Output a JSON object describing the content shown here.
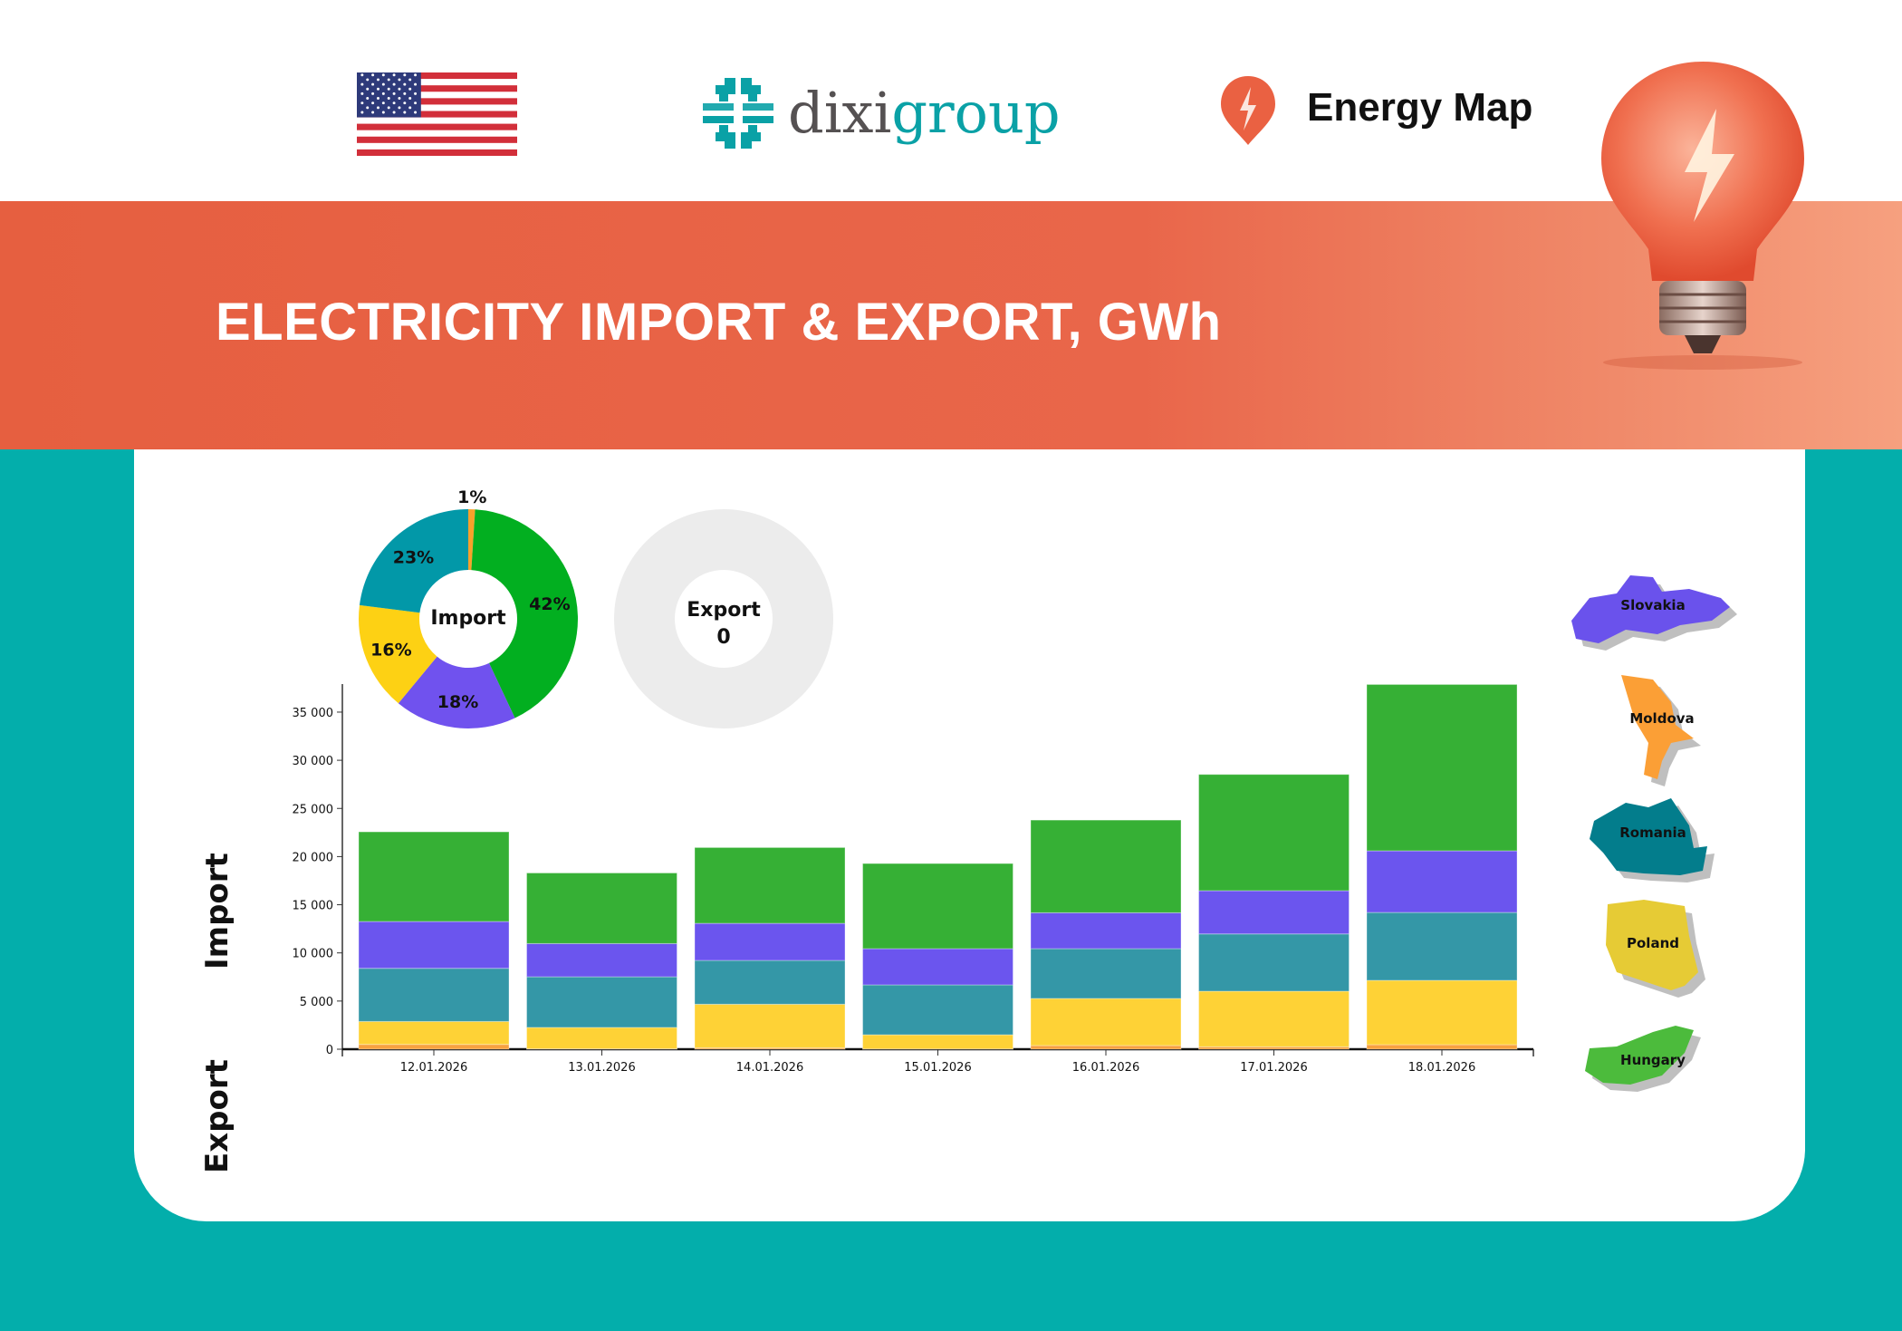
{
  "header": {
    "flag_icon": "us-flag-icon",
    "logo_text_part1": "dixi",
    "logo_text_part2": "group",
    "brand_name": "Energy Map",
    "brand_icon": "lightning-pin-icon"
  },
  "banner": {
    "title": "ELECTRICITY IMPORT & EXPORT, GWh"
  },
  "side_labels": {
    "import": "Import",
    "export": "Export"
  },
  "donuts": {
    "import": {
      "label": "Import"
    },
    "export": {
      "label": "Export",
      "value": "0"
    }
  },
  "countries": [
    {
      "name": "Slovakia",
      "color": "#6a52ec"
    },
    {
      "name": "Moldova",
      "color": "#fb9f36"
    },
    {
      "name": "Romania",
      "color": "#037d8c"
    },
    {
      "name": "Poland",
      "color": "#e6cb35"
    },
    {
      "name": "Hungary",
      "color": "#4cbb3c"
    }
  ],
  "chart_data": [
    {
      "type": "pie",
      "title": "Import",
      "categories": [
        "Moldova",
        "Hungary",
        "Slovakia",
        "Poland",
        "Romania"
      ],
      "values": [
        1,
        42,
        18,
        16,
        23
      ],
      "labels": [
        "1%",
        "42%",
        "18%",
        "16%",
        "23%"
      ],
      "colors": [
        "#f7a12a",
        "#02af20",
        "#7052ee",
        "#fdd114",
        "#0298a8"
      ]
    },
    {
      "type": "pie",
      "title": "Export",
      "values": [],
      "total": 0,
      "empty_color": "#ececec"
    },
    {
      "type": "bar",
      "stacked": true,
      "categories": [
        "12.01.2026",
        "13.01.2026",
        "14.01.2026",
        "15.01.2026",
        "16.01.2026",
        "17.01.2026",
        "18.01.2026"
      ],
      "series": [
        {
          "name": "Moldova",
          "color": "#f7a240",
          "values": [
            500,
            50,
            150,
            30,
            380,
            250,
            470
          ]
        },
        {
          "name": "Poland",
          "color": "#fed236",
          "values": [
            2380,
            2210,
            4520,
            1470,
            4890,
            5770,
            6680
          ]
        },
        {
          "name": "Romania",
          "color": "#3497a7",
          "values": [
            5520,
            5260,
            4550,
            5180,
            5170,
            5950,
            7050
          ]
        },
        {
          "name": "Slovakia",
          "color": "#6b55ee",
          "values": [
            4860,
            3450,
            3850,
            3760,
            3730,
            4490,
            6400
          ]
        },
        {
          "name": "Hungary",
          "color": "#36b035",
          "values": [
            9310,
            7330,
            7870,
            8840,
            9620,
            12070,
            17270
          ]
        }
      ],
      "yticks": [
        0,
        5000,
        10000,
        15000,
        20000,
        25000,
        30000,
        35000
      ],
      "ytick_labels": [
        "0",
        "5 000",
        "10 000",
        "15 000",
        "20 000",
        "25 000",
        "30 000",
        "35 000"
      ],
      "ylim": [
        0,
        38000
      ],
      "grid": false
    }
  ]
}
